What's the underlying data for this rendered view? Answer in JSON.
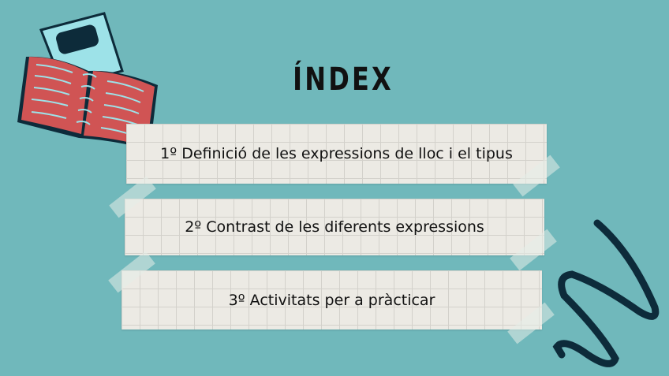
{
  "title": "ÍNDEX",
  "items": [
    {
      "label": "1º Definició de les expressions de lloc i el tipus"
    },
    {
      "label": "2º Contrast de les diferents expressions"
    },
    {
      "label": "3º Activitats per a pràcticar"
    }
  ],
  "colors": {
    "background": "#70b8bb",
    "paper": "#eceae4",
    "book_red": "#d05454",
    "notebook_blue": "#9de2e8",
    "dark_navy": "#0d2b3a"
  }
}
